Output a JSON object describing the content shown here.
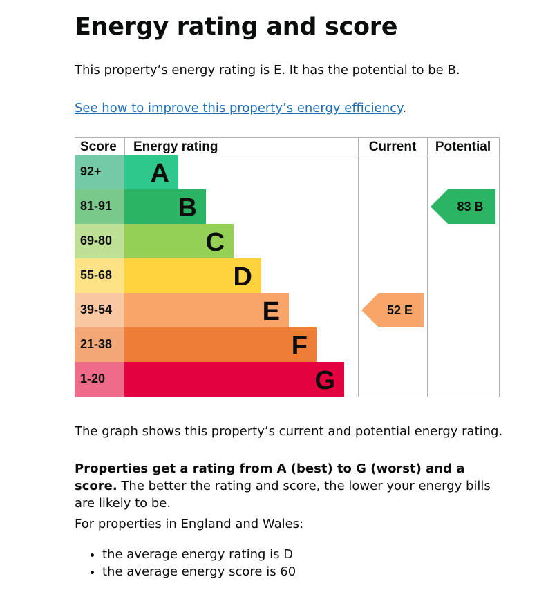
{
  "page": {
    "title": "Energy rating and score",
    "intro": "This property’s energy rating is E. It has the potential to be B.",
    "link_text": "See how to improve this property’s energy efficiency",
    "link_suffix": ".",
    "graph_note": "The graph shows this property’s current and potential energy rating.",
    "ratings_bold": "Properties get a rating from A (best) to G (worst) and a score.",
    "ratings_rest": " The better the rating and score, the lower your energy bills are likely to be.",
    "regional_intro": "For properties in England and Wales:",
    "averages": [
      "the average energy rating is D",
      "the average energy score is 60"
    ]
  },
  "chart_data": {
    "type": "bar",
    "headers": {
      "score": "Score",
      "rating": "Energy rating",
      "current": "Current",
      "potential": "Potential"
    },
    "bands": [
      {
        "score": "92+",
        "letter": "A",
        "bar_color": "#2dc88a",
        "score_color": "#74c9a6",
        "level": 1
      },
      {
        "score": "81-91",
        "letter": "B",
        "bar_color": "#2ab464",
        "score_color": "#79c98a",
        "level": 2
      },
      {
        "score": "69-80",
        "letter": "C",
        "bar_color": "#94cf56",
        "score_color": "#bde095",
        "level": 3
      },
      {
        "score": "55-68",
        "letter": "D",
        "bar_color": "#fed33d",
        "score_color": "#fde385",
        "level": 4
      },
      {
        "score": "39-54",
        "letter": "E",
        "bar_color": "#f9a56a",
        "score_color": "#fac7a3",
        "level": 5
      },
      {
        "score": "21-38",
        "letter": "F",
        "bar_color": "#ee7d37",
        "score_color": "#f3a776",
        "level": 6
      },
      {
        "score": "1-20",
        "letter": "G",
        "bar_color": "#e30140",
        "score_color": "#ef6b8a",
        "level": 7
      }
    ],
    "current": {
      "score": 52,
      "letter": "E",
      "label": "52  E",
      "color": "#f9a56a"
    },
    "potential": {
      "score": 83,
      "letter": "B",
      "label": "83  B",
      "color": "#2ab464"
    }
  }
}
